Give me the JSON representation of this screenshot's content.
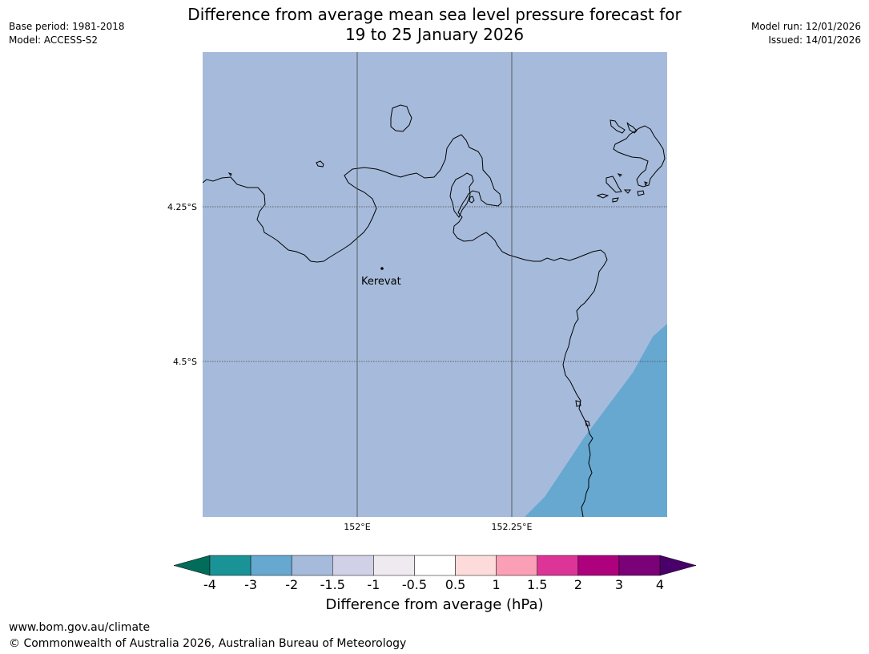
{
  "header": {
    "left_lines": [
      "Base period: 1981-2018",
      "Model: ACCESS-S2"
    ],
    "right_lines": [
      "Model run: 12/01/2026",
      "Issued: 14/01/2026"
    ],
    "title_line1": "Difference from average mean sea level pressure forecast for",
    "title_line2": "19 to 25 January 2026"
  },
  "map": {
    "lon_labels": [
      "152°E",
      "152.25°E"
    ],
    "lat_labels": [
      "4.25°S",
      "4.5°S"
    ],
    "places": [
      {
        "name": "Kerevat"
      }
    ],
    "fill_colors": {
      "dominant": "#a6bbdb",
      "southeast": "#67a8d0"
    },
    "coastline_color": "#000000"
  },
  "colorbar": {
    "title": "Difference from average (hPa)",
    "tick_labels": [
      "-4",
      "-3",
      "-2",
      "-1.5",
      "-1",
      "-0.5",
      "0.5",
      "1",
      "1.5",
      "2",
      "3",
      "4"
    ],
    "colors": [
      "#1a9397",
      "#67a8d0",
      "#a6bbdb",
      "#d0d1e6",
      "#efeaef",
      "#ffffff",
      "#fddbdb",
      "#fa9fb5",
      "#dd3497",
      "#ae017e",
      "#7a0177"
    ],
    "extend_low_color": "#016c59",
    "extend_high_color": "#49006a"
  },
  "footer": {
    "url": "www.bom.gov.au/climate",
    "copyright": "© Commonwealth of Australia 2026, Australian Bureau of Meteorology"
  }
}
